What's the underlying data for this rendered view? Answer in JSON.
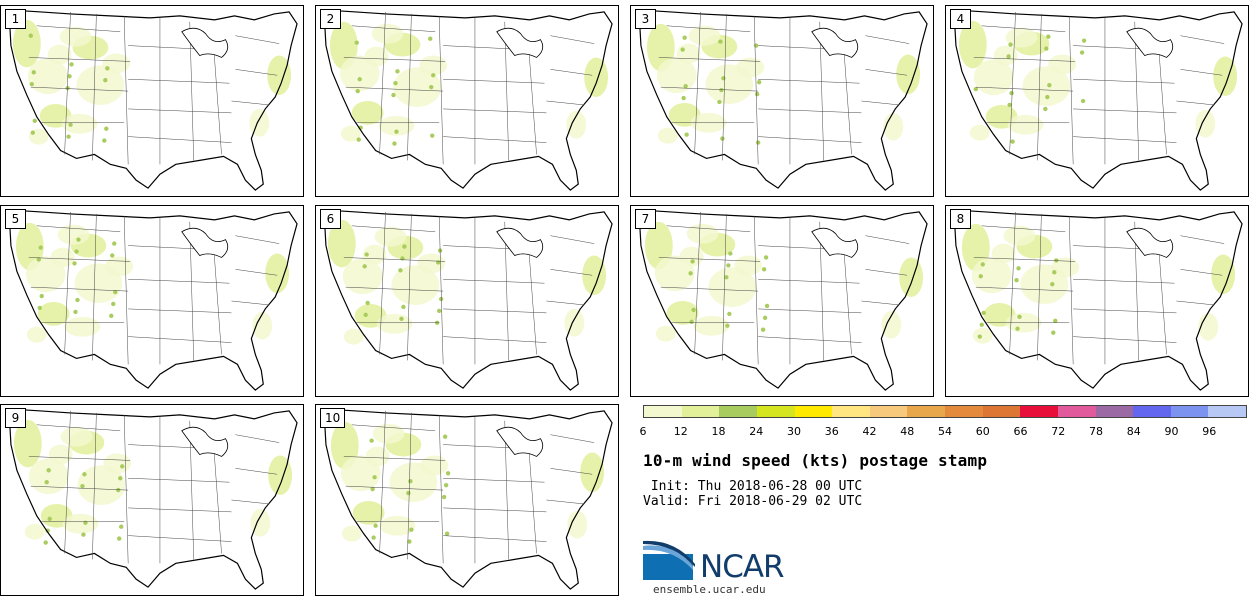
{
  "panels": [
    {
      "label": "1"
    },
    {
      "label": "2"
    },
    {
      "label": "3"
    },
    {
      "label": "4"
    },
    {
      "label": "5"
    },
    {
      "label": "6"
    },
    {
      "label": "7"
    },
    {
      "label": "8"
    },
    {
      "label": "9"
    },
    {
      "label": "10"
    }
  ],
  "colorbar": {
    "colors": [
      "#f3f8cf",
      "#e2f09a",
      "#a9cc5f",
      "#d5e51f",
      "#ffea00",
      "#ffe680",
      "#f6c97d",
      "#e8a74a",
      "#e38a3c",
      "#dd7535",
      "#e8103b",
      "#e05a9c",
      "#9b6aa4",
      "#6366ee",
      "#7d93f0",
      "#b8c8f5"
    ],
    "ticks": [
      "6",
      "12",
      "18",
      "24",
      "30",
      "36",
      "42",
      "48",
      "54",
      "60",
      "66",
      "72",
      "78",
      "84",
      "90",
      "96"
    ]
  },
  "info": {
    "title": "10-m wind speed (kts) postage stamp",
    "init": " Init: Thu 2018-06-28 00 UTC",
    "valid": "Valid: Fri 2018-06-29 02 UTC"
  },
  "branding": {
    "logo_text": "NCAR",
    "site": "ensemble.ucar.edu",
    "logo_colors": {
      "blue": "#0f6fb3",
      "navy": "#123d6b"
    }
  }
}
